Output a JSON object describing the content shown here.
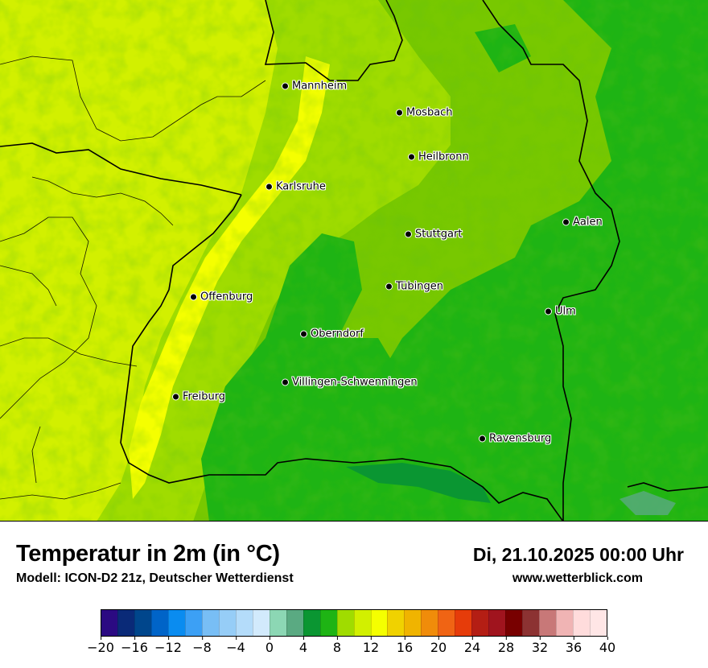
{
  "title": "Temperatur in 2m (in °C)",
  "subtitle": "Modell: ICON-D2 21z, Deutscher Wetterdienst",
  "datetime": "Di, 21.10.2025 00:00 Uhr",
  "website": "www.wetterblick.com",
  "cities": [
    {
      "name": "Mannheim"
    },
    {
      "name": "Mosbach"
    },
    {
      "name": "Heilbronn"
    },
    {
      "name": "Karlsruhe"
    },
    {
      "name": "Aalen"
    },
    {
      "name": "Stuttgart"
    },
    {
      "name": "Tübingen"
    },
    {
      "name": "Offenburg"
    },
    {
      "name": "Ulm"
    },
    {
      "name": "Oberndorf"
    },
    {
      "name": "Villingen-Schwenningen"
    },
    {
      "name": "Freiburg"
    },
    {
      "name": "Ravensburg"
    }
  ],
  "legend": {
    "unit": "°C",
    "min": -20,
    "max": 40,
    "step": 2,
    "tick_labels": [
      "−20",
      "−16",
      "−12",
      "−8",
      "−4",
      "0",
      "4",
      "8",
      "12",
      "16",
      "20",
      "24",
      "28",
      "32",
      "36",
      "40"
    ],
    "colors": [
      "#2b0a82",
      "#0a2a78",
      "#00468c",
      "#0064c8",
      "#0a8cf0",
      "#3ca0f5",
      "#78bef5",
      "#96cdf7",
      "#b4dcfa",
      "#d2eafc",
      "#8cd7b4",
      "#5aaa82",
      "#0a9632",
      "#1eb414",
      "#a0dc00",
      "#d2f000",
      "#f5ff00",
      "#f0d200",
      "#f0b400",
      "#f08c0a",
      "#f06414",
      "#e63c0a",
      "#b41e14",
      "#a0141e",
      "#780000",
      "#8c3232",
      "#c87878",
      "#f0b4b4",
      "#ffdcdc",
      "#ffe6e6"
    ]
  },
  "map_colors": {
    "t8_10": "#1eb414",
    "t10_12": "#78c800",
    "t12_14": "#a0dc00",
    "t14_16": "#d2f000",
    "t16_18": "#f5ff00",
    "water": "#5aaa82",
    "border": "#000000"
  }
}
